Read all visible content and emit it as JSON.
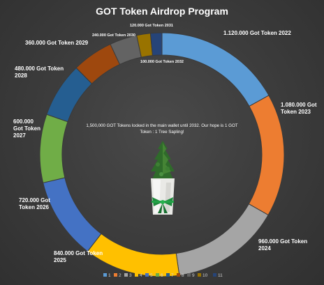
{
  "chart_data": {
    "type": "pie",
    "title": "GOT Token Airdrop Program",
    "center_note": "1,500,000 GOT Tokens locked in the main wallet until 2032. Our hope is 1 GOT Token : 1 Tree Sapling!",
    "categories": [
      "1",
      "2",
      "3",
      "4",
      "5",
      "6",
      "7",
      "8",
      "9",
      "10",
      "11"
    ],
    "values": [
      1120000,
      1080000,
      960000,
      840000,
      720000,
      600000,
      480000,
      360000,
      240000,
      120000,
      100000
    ],
    "labels": [
      [
        "1.120.000 Got Token 2022"
      ],
      [
        "1.080.000 Got",
        "Token 2023"
      ],
      [
        "960.000 Got Token",
        "2024"
      ],
      [
        "840.000 Got Token",
        "2025"
      ],
      [
        "720.000 Got",
        "Token 2026"
      ],
      [
        "600.000",
        "Got Token",
        "2027"
      ],
      [
        "480.000 Got Token",
        "2028"
      ],
      [
        "360.000 Got Token 2029"
      ],
      [
        "240.000 Got Token 2030"
      ],
      [
        "120.000 Got Token 2031"
      ],
      [
        "100.000 Got Token 2032"
      ]
    ],
    "colors": [
      "#5b9bd5",
      "#ed7d31",
      "#a5a5a5",
      "#ffc000",
      "#4472c4",
      "#70ad47",
      "#255e91",
      "#9e480e",
      "#636363",
      "#997300",
      "#264478"
    ],
    "legend_position": "bottom"
  }
}
